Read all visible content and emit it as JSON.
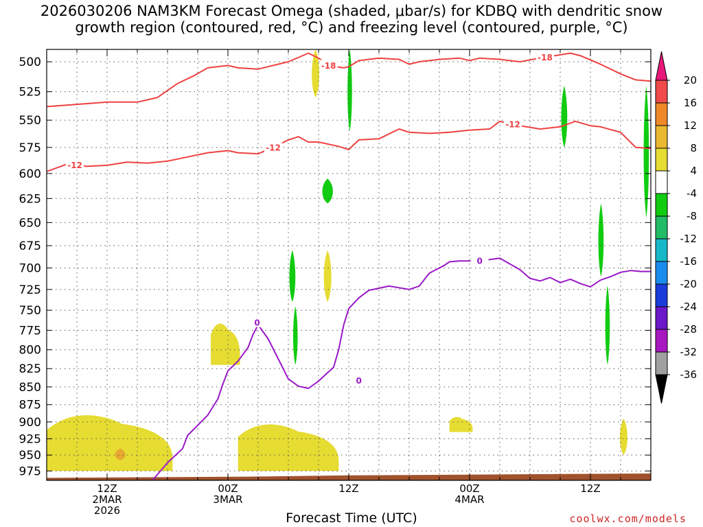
{
  "title": {
    "line1": "2026030206 NAM3KM Forecast Omega (shaded, μbar/s) for KDBQ with dendritic snow",
    "line2": "growth region (contoured, red, °C) and freezing level (contoured, purple, °C)"
  },
  "xaxis_title": "Forecast Time (UTC)",
  "credit": "coolwx.com/models",
  "colors": {
    "dgz_contour": "#f04040",
    "freezing_contour": "#9a18c8",
    "terrain": "#a0522d",
    "upward_motion": "#11cc11",
    "downward_motion": "#e6dc32",
    "downward_strong": "#e8a830"
  },
  "chart_data": {
    "type": "area",
    "title": "2026030206 NAM3KM Forecast Omega (shaded, μbar/s) for KDBQ with dendritic snow growth region (contoured, red, °C) and freezing level (contoured, purple, °C)",
    "xlabel": "Forecast Time (UTC)",
    "ylabel": "",
    "x_unit": "forecast hour",
    "xlim": [
      0,
      60
    ],
    "ylim": [
      990,
      490
    ],
    "y_scale": "log pressure, inverted",
    "grid": true,
    "x_ticks": [
      {
        "hour": 6,
        "labels": [
          "12Z",
          "2MAR",
          "2026"
        ]
      },
      {
        "hour": 18,
        "labels": [
          "00Z",
          "3MAR"
        ]
      },
      {
        "hour": 30,
        "labels": [
          "12Z"
        ]
      },
      {
        "hour": 42,
        "labels": [
          "00Z",
          "4MAR"
        ]
      },
      {
        "hour": 54,
        "labels": [
          "12Z"
        ]
      }
    ],
    "y_ticks": [
      500,
      525,
      550,
      575,
      600,
      625,
      650,
      675,
      700,
      725,
      750,
      775,
      800,
      825,
      850,
      875,
      900,
      925,
      950,
      975
    ],
    "colorbar": {
      "ticks": [
        "20",
        "16",
        "12",
        "8",
        "4",
        "-4",
        "-8",
        "-12",
        "-16",
        "-20",
        "-24",
        "-28",
        "-32",
        "-36"
      ],
      "colors": [
        "#e8187a",
        "#f04a4a",
        "#ee8828",
        "#e8b830",
        "#e6dc32",
        "#ffffff",
        "#11cc11",
        "#22bb66",
        "#16b8c8",
        "#1a8cf0",
        "#1a3cdc",
        "#6a18c8",
        "#a818c0",
        "#a0a0a0",
        "#000000"
      ]
    },
    "series": [
      {
        "name": "-18",
        "kind": "isotherm",
        "color": "#f04040",
        "points": [
          [
            0,
            538
          ],
          [
            3,
            536
          ],
          [
            6,
            534
          ],
          [
            9,
            534
          ],
          [
            11,
            530
          ],
          [
            13,
            518
          ],
          [
            14.5,
            512
          ],
          [
            16,
            505
          ],
          [
            18,
            503
          ],
          [
            19,
            505
          ],
          [
            21,
            506
          ],
          [
            24,
            500
          ],
          [
            26,
            493
          ],
          [
            27,
            497
          ],
          [
            28,
            503
          ],
          [
            29.5,
            505
          ],
          [
            30,
            504
          ],
          [
            31,
            499
          ],
          [
            33,
            497
          ],
          [
            35,
            498
          ],
          [
            36,
            502
          ],
          [
            37,
            500
          ],
          [
            39,
            498
          ],
          [
            41,
            497
          ],
          [
            42,
            499
          ],
          [
            43,
            497
          ],
          [
            45,
            498
          ],
          [
            47,
            500
          ],
          [
            49,
            497
          ],
          [
            52,
            493
          ],
          [
            53,
            495
          ],
          [
            55,
            502
          ],
          [
            57,
            510
          ],
          [
            58.5,
            515
          ],
          [
            60,
            516
          ]
        ]
      },
      {
        "name": "-12",
        "kind": "isotherm",
        "color": "#f04040",
        "points": [
          [
            0,
            598
          ],
          [
            2,
            591
          ],
          [
            4,
            593
          ],
          [
            6,
            592
          ],
          [
            8,
            589
          ],
          [
            10,
            590
          ],
          [
            12,
            588
          ],
          [
            14,
            584
          ],
          [
            16,
            580
          ],
          [
            18,
            578
          ],
          [
            19,
            580
          ],
          [
            21,
            581
          ],
          [
            22.5,
            575
          ],
          [
            24,
            568
          ],
          [
            25,
            565
          ],
          [
            26,
            570
          ],
          [
            27,
            570
          ],
          [
            29,
            574
          ],
          [
            30,
            577
          ],
          [
            31,
            568
          ],
          [
            33,
            567
          ],
          [
            35,
            558
          ],
          [
            36,
            561
          ],
          [
            38,
            562
          ],
          [
            40,
            561
          ],
          [
            42,
            559
          ],
          [
            44,
            558
          ],
          [
            45,
            551
          ],
          [
            47,
            555
          ],
          [
            49,
            558
          ],
          [
            51,
            556
          ],
          [
            52.5,
            551
          ],
          [
            54,
            555
          ],
          [
            55,
            556
          ],
          [
            57,
            561
          ],
          [
            58.5,
            575
          ],
          [
            60,
            576
          ]
        ]
      },
      {
        "name": "0",
        "kind": "freezing level",
        "color": "#9a18c8",
        "points": [
          [
            10.5,
            990
          ],
          [
            12,
            962
          ],
          [
            13.5,
            940
          ],
          [
            14,
            920
          ],
          [
            15,
            905
          ],
          [
            16,
            890
          ],
          [
            17,
            867
          ],
          [
            17.5,
            846
          ],
          [
            18,
            828
          ],
          [
            19,
            815
          ],
          [
            20,
            797
          ],
          [
            20.5,
            780
          ],
          [
            21,
            768
          ],
          [
            22,
            786
          ],
          [
            23,
            812
          ],
          [
            24,
            839
          ],
          [
            25,
            849
          ],
          [
            26,
            852
          ],
          [
            27,
            842
          ],
          [
            28.5,
            823
          ],
          [
            29,
            800
          ],
          [
            29.5,
            768
          ],
          [
            30,
            748
          ],
          [
            31,
            735
          ],
          [
            32,
            726
          ],
          [
            34,
            721
          ],
          [
            36,
            725
          ],
          [
            37,
            721
          ],
          [
            38,
            706
          ],
          [
            39.5,
            697
          ],
          [
            40,
            693
          ],
          [
            41,
            692
          ],
          [
            43,
            692
          ],
          [
            45,
            689
          ],
          [
            47,
            702
          ],
          [
            48,
            712
          ],
          [
            49,
            715
          ],
          [
            50,
            711
          ],
          [
            51,
            717
          ],
          [
            52,
            713
          ],
          [
            53,
            718
          ],
          [
            54,
            722
          ],
          [
            55,
            714
          ],
          [
            56,
            710
          ],
          [
            57,
            705
          ],
          [
            58,
            703
          ],
          [
            59,
            704
          ],
          [
            60,
            704
          ]
        ]
      }
    ],
    "annotations": [
      "-18",
      "-18",
      "-12",
      "-12",
      "-12",
      "0",
      "0",
      "0"
    ],
    "omega_features": [
      {
        "sign": "upward",
        "level": "-4 to -8",
        "hours": [
          27.2,
          28.6
        ],
        "pressure": [
          605,
          630
        ]
      },
      {
        "sign": "upward",
        "level": "-4 to -8",
        "hours": [
          29.8,
          30.4
        ],
        "pressure": [
          490,
          560
        ]
      },
      {
        "sign": "upward",
        "level": "-4 to -8",
        "hours": [
          51.0,
          51.8
        ],
        "pressure": [
          520,
          575
        ]
      },
      {
        "sign": "upward",
        "level": "-4 to -8",
        "hours": [
          24.0,
          24.8
        ],
        "pressure": [
          680,
          740
        ]
      },
      {
        "sign": "upward",
        "level": "-4 to -8",
        "hours": [
          24.4,
          25.0
        ],
        "pressure": [
          745,
          820
        ]
      },
      {
        "sign": "upward",
        "level": "-4 to -8",
        "hours": [
          54.7,
          55.4
        ],
        "pressure": [
          630,
          710
        ]
      },
      {
        "sign": "upward",
        "level": "-4 to -8",
        "hours": [
          55.4,
          56.0
        ],
        "pressure": [
          720,
          820
        ]
      },
      {
        "sign": "upward",
        "level": "-4 to -8",
        "hours": [
          59.2,
          59.9
        ],
        "pressure": [
          520,
          645
        ]
      },
      {
        "sign": "downward",
        "level": "4 to 8",
        "hours": [
          0,
          12.5
        ],
        "pressure": [
          880,
          975
        ]
      },
      {
        "sign": "downward",
        "level": "8 to 12",
        "hours": [
          6.6,
          8.0
        ],
        "pressure": [
          940,
          958
        ]
      },
      {
        "sign": "downward",
        "level": "4 to 8",
        "hours": [
          19,
          29
        ],
        "pressure": [
          895,
          975
        ]
      },
      {
        "sign": "downward",
        "level": "4 to 8",
        "hours": [
          16.3,
          19.2
        ],
        "pressure": [
          760,
          820
        ]
      },
      {
        "sign": "downward",
        "level": "4 to 8",
        "hours": [
          27.4,
          28.4
        ],
        "pressure": [
          680,
          740
        ]
      },
      {
        "sign": "downward",
        "level": "4 to 8",
        "hours": [
          26.2,
          27.2
        ],
        "pressure": [
          490,
          530
        ]
      },
      {
        "sign": "downward",
        "level": "4 to 8",
        "hours": [
          40,
          42.3
        ],
        "pressure": [
          890,
          915
        ]
      },
      {
        "sign": "downward",
        "level": "4 to 8",
        "hours": [
          56.8,
          57.8
        ],
        "pressure": [
          895,
          950
        ]
      }
    ],
    "terrain": {
      "surface_pressure_hpa": [
        [
          0,
          986
        ],
        [
          10,
          985
        ],
        [
          20,
          984
        ],
        [
          30,
          982
        ],
        [
          40,
          981
        ],
        [
          50,
          980
        ],
        [
          60,
          979
        ]
      ]
    }
  }
}
